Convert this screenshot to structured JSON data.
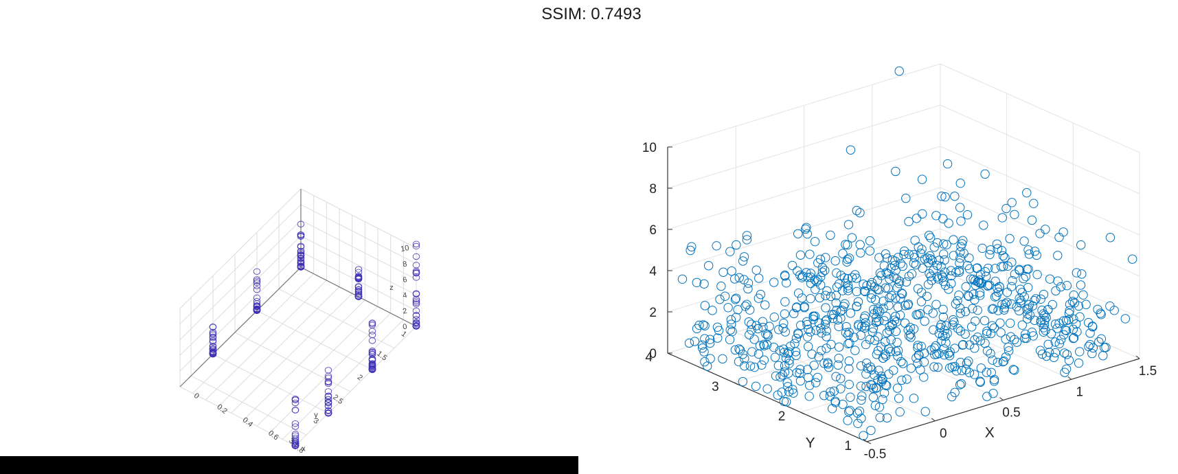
{
  "title": "SSIM: 0.7493",
  "chart_data": [
    {
      "type": "scatter",
      "projection": "3d",
      "marker": "open-circle",
      "color": "#3f32b8",
      "grid": true,
      "xlabel": "x",
      "ylabel": "y",
      "zlabel": "z",
      "xlim": [
        0,
        0.9
      ],
      "ylim": [
        1,
        3.75
      ],
      "zlim": [
        0,
        10
      ],
      "xticks": [
        "0",
        "0.2",
        "0.4",
        "0.6",
        "0.8"
      ],
      "yticks": [
        "1",
        "1.5",
        "2",
        "2.5",
        "3",
        "3.5"
      ],
      "zticks": [
        "0",
        "2",
        "4",
        "6",
        "8",
        "10"
      ],
      "columns": [
        {
          "x": 0.0,
          "y": 1.0,
          "zmin": 0,
          "zmax": 5.5
        },
        {
          "x": 0.0,
          "y": 2.0,
          "zmin": 0,
          "zmax": 5.0
        },
        {
          "x": 0.0,
          "y": 3.0,
          "zmin": 0,
          "zmax": 3.5
        },
        {
          "x": 0.45,
          "y": 1.0,
          "zmin": 0,
          "zmax": 3.5
        },
        {
          "x": 0.9,
          "y": 1.0,
          "zmin": 0,
          "zmax": 10.5
        },
        {
          "x": 0.9,
          "y": 2.0,
          "zmin": 0,
          "zmax": 6.0
        },
        {
          "x": 0.9,
          "y": 3.0,
          "zmin": 0,
          "zmax": 5.5
        },
        {
          "x": 0.9,
          "y": 3.75,
          "zmin": 0,
          "zmax": 6.0
        }
      ]
    },
    {
      "type": "scatter",
      "projection": "3d",
      "marker": "open-circle",
      "color": "#0072bd",
      "grid": true,
      "xlabel": "X",
      "ylabel": "Y",
      "zlabel": "",
      "xlim": [
        -0.5,
        1.5
      ],
      "ylim": [
        1,
        4
      ],
      "zlim": [
        0,
        10
      ],
      "xticks": [
        "-0.5",
        "0",
        "0.5",
        "1",
        "1.5"
      ],
      "yticks": [
        "1",
        "2",
        "3",
        "4"
      ],
      "zticks": [
        "0",
        "2",
        "4",
        "6",
        "8",
        "10"
      ],
      "clusters": [
        {
          "x": -0.25,
          "y": 1.5
        },
        {
          "x": -0.25,
          "y": 2.5
        },
        {
          "x": -0.25,
          "y": 3.5
        },
        {
          "x": 0.5,
          "y": 1.5
        },
        {
          "x": 0.5,
          "y": 2.5
        },
        {
          "x": 0.5,
          "y": 3.5
        },
        {
          "x": 1.25,
          "y": 1.5
        },
        {
          "x": 1.25,
          "y": 2.5
        },
        {
          "x": 1.25,
          "y": 3.5
        }
      ],
      "cluster_z_range": [
        0,
        6
      ],
      "outliers": [
        {
          "x": 1.15,
          "y": 3.9,
          "z": 10.5
        },
        {
          "x": 0.55,
          "y": 3.4,
          "z": 8.6
        },
        {
          "x": 1.0,
          "y": 2.3,
          "z": 8.1
        }
      ]
    }
  ]
}
